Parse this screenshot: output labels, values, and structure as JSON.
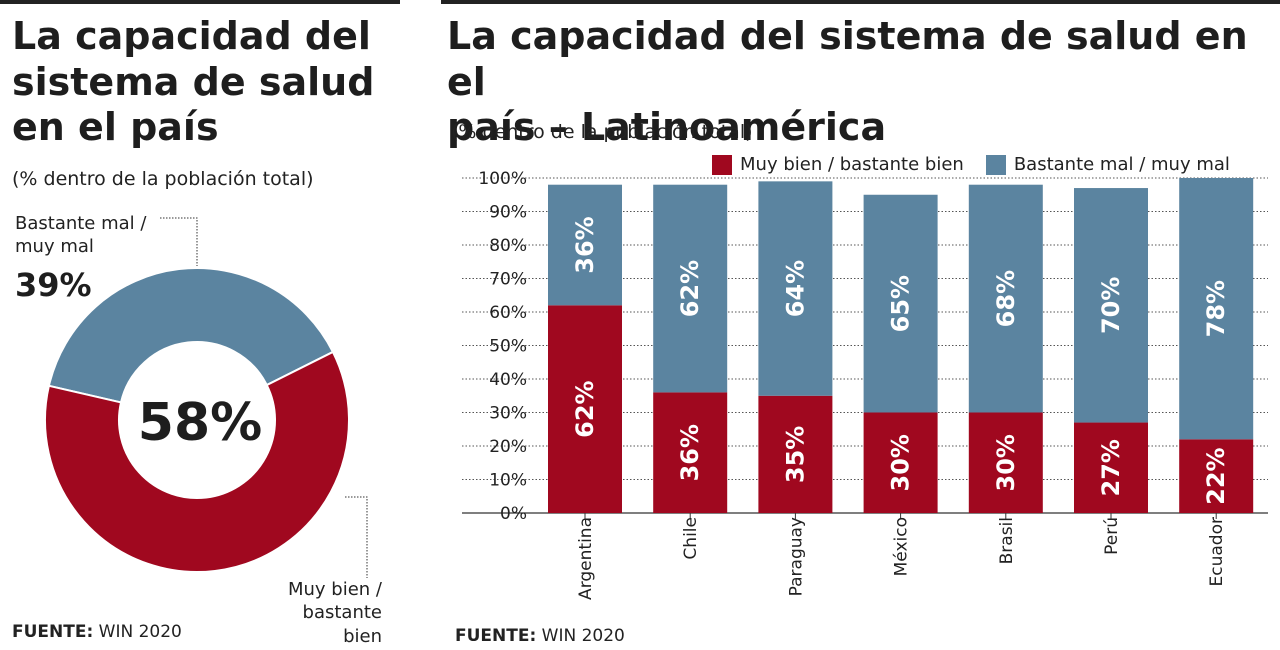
{
  "left": {
    "title": [
      "La capacidad del",
      "sistema de salud",
      "en el país"
    ],
    "subtitle": "(% dentro de la población total)",
    "label_bad": [
      "Bastante mal /",
      "muy mal"
    ],
    "pct_bad": "39%",
    "center_pct": "58%",
    "label_good": [
      "Muy bien /",
      "bastante bien"
    ],
    "source_bold": "FUENTE:",
    "source_text": " WIN 2020"
  },
  "right": {
    "title": [
      "La capacidad del sistema de salud en el",
      "país – Latinoamérica"
    ],
    "subtitle": "(% dentro de la población total)",
    "source_bold": "FUENTE:",
    "source_text": " WIN 2020"
  },
  "colors": {
    "good": "#a0081f",
    "bad": "#5b84a0",
    "grid": "#555555"
  },
  "chart_data": [
    {
      "type": "pie",
      "categories": [
        "Muy bien / bastante bien",
        "Bastante mal / muy mal"
      ],
      "values": [
        58,
        39
      ],
      "labels": [
        "58%",
        "39%"
      ]
    },
    {
      "type": "bar",
      "stacked": true,
      "categories": [
        "Argentina",
        "Chile",
        "Paraguay",
        "México",
        "Brasil",
        "Perú",
        "Ecuador"
      ],
      "series": [
        {
          "name": "Muy bien / bastante bien",
          "values": [
            62,
            36,
            35,
            30,
            30,
            27,
            22
          ],
          "labels": [
            "62%",
            "36%",
            "35%",
            "30%",
            "30%",
            "27%",
            "22%"
          ]
        },
        {
          "name": "Bastante mal / muy mal",
          "values": [
            36,
            62,
            64,
            65,
            68,
            70,
            78
          ],
          "labels": [
            "36%",
            "62%",
            "64%",
            "65%",
            "68%",
            "70%",
            "78%"
          ]
        }
      ],
      "yticks": [
        "0%",
        "10%",
        "20%",
        "30%",
        "40%",
        "50%",
        "60%",
        "70%",
        "80%",
        "90%",
        "100%"
      ],
      "ylim": [
        0,
        100
      ],
      "legend": "top-right",
      "grid": true
    }
  ]
}
